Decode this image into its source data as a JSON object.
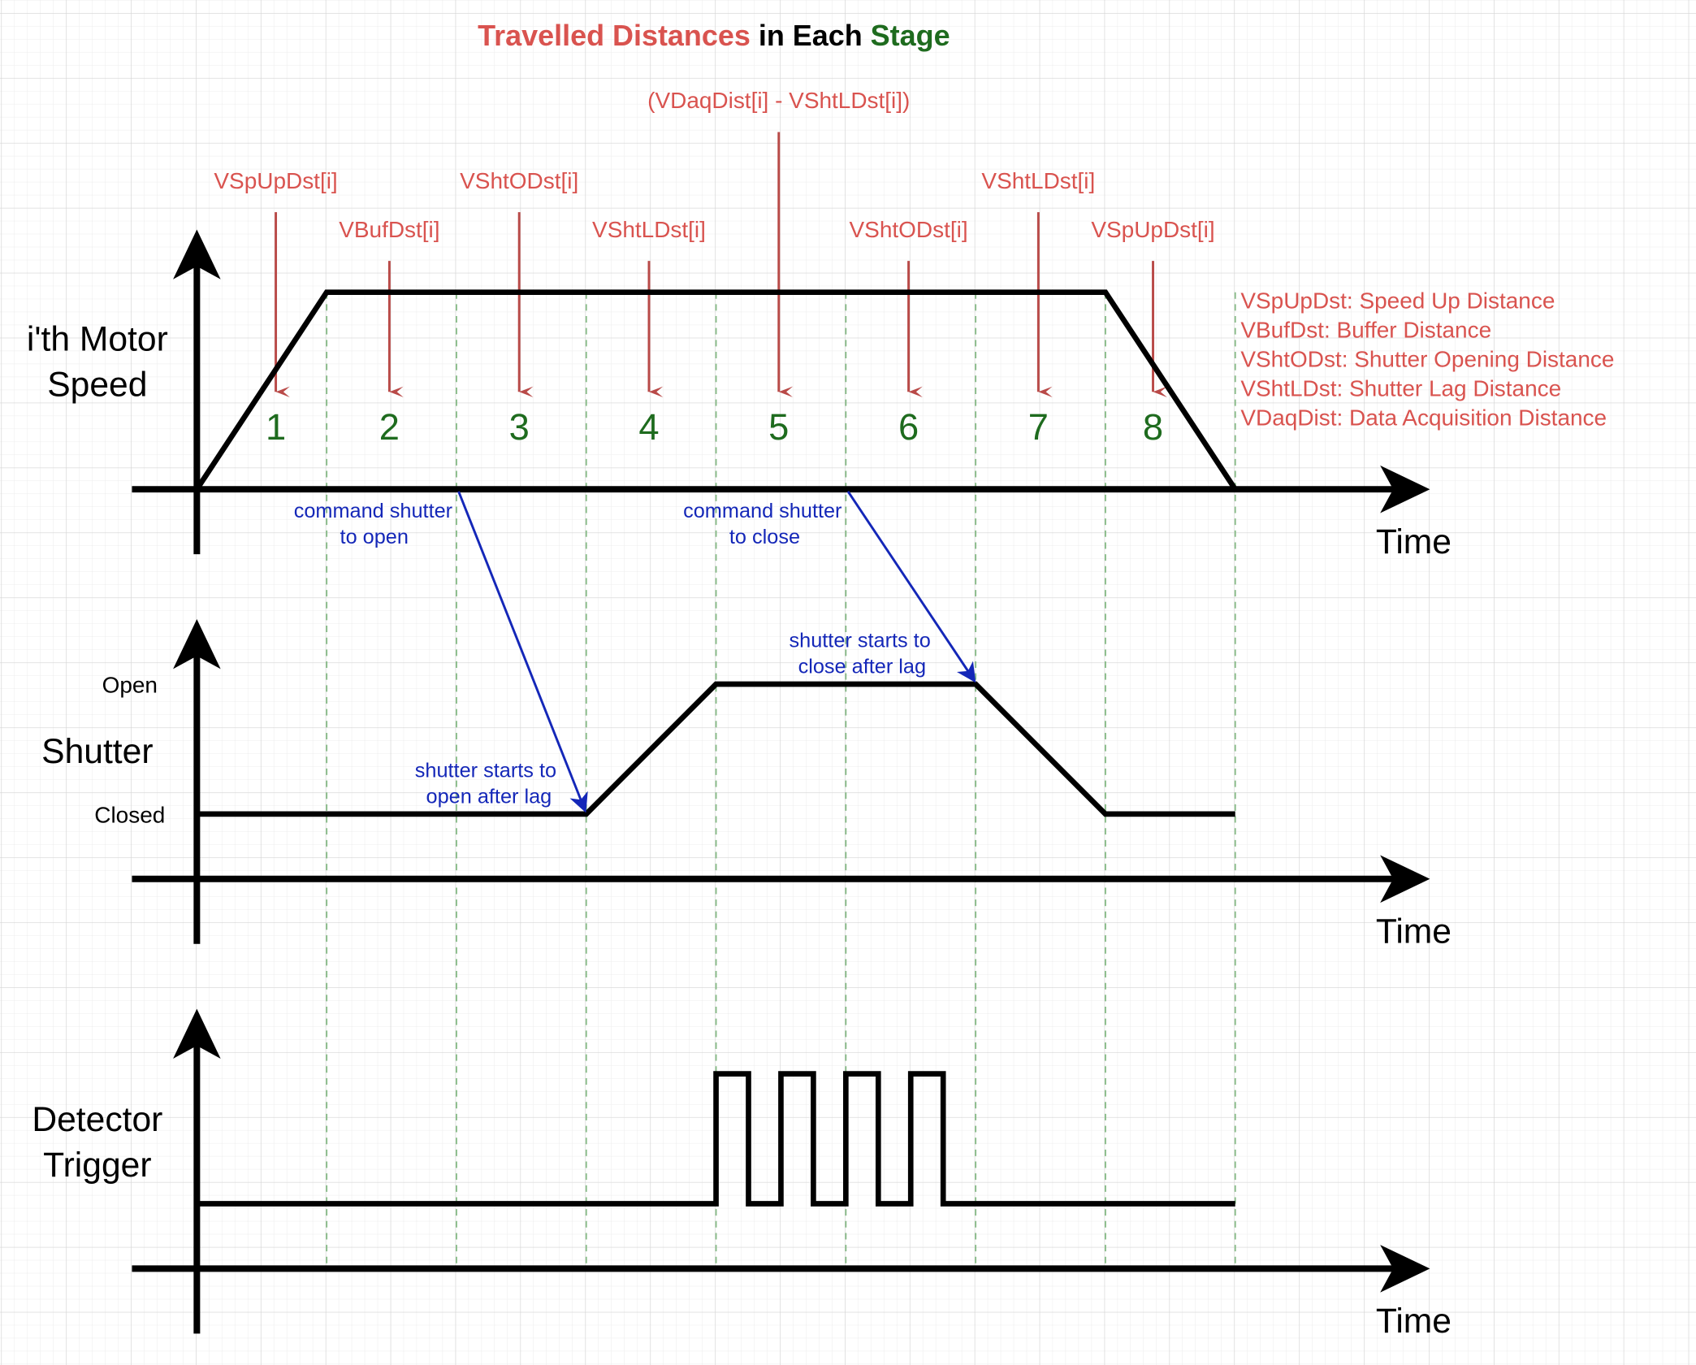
{
  "title": {
    "part1": "Travelled Distances",
    "part2": " in Each ",
    "part3": "Stage"
  },
  "colors": {
    "red": "#d9534f",
    "arrow_red": "#b94a48",
    "green": "#1e6b1e",
    "blue": "#1427b8",
    "black": "#000000",
    "grid_minor": "#e6e6e6",
    "grid_major": "#d0d0d0",
    "stage_divider": "#88bb88"
  },
  "panels": {
    "speed": {
      "ylabel_line1": "i'th Motor",
      "ylabel_line2": "Speed",
      "xlabel": "Time"
    },
    "shutter": {
      "ylabel": "Shutter",
      "open_label": "Open",
      "closed_label": "Closed",
      "xlabel": "Time"
    },
    "trigger": {
      "ylabel_line1": "Detector",
      "ylabel_line2": "Trigger",
      "xlabel": "Time"
    }
  },
  "stages": [
    {
      "number": "1",
      "distance_label": "VSpUpDst[i]"
    },
    {
      "number": "2",
      "distance_label": "VBufDst[i]"
    },
    {
      "number": "3",
      "distance_label": "VShtODst[i]"
    },
    {
      "number": "4",
      "distance_label": "VShtLDst[i]"
    },
    {
      "number": "5",
      "distance_label": "(VDaqDist[i] - VShtLDst[i])"
    },
    {
      "number": "6",
      "distance_label": "VShtODst[i]"
    },
    {
      "number": "7",
      "distance_label": "VShtLDst[i]"
    },
    {
      "number": "8",
      "distance_label": "VSpUpDst[i]"
    }
  ],
  "legend": [
    "VSpUpDst: Speed Up Distance",
    "VBufDst: Buffer Distance",
    "VShtODst: Shutter Opening Distance",
    "VShtLDst: Shutter Lag Distance",
    "VDaqDist: Data Acquisition Distance"
  ],
  "annotations": {
    "cmd_open_line1": "command shutter",
    "cmd_open_line2": "to open",
    "cmd_close_line1": "command shutter",
    "cmd_close_line2": "to close",
    "starts_open_line1": "shutter starts to",
    "starts_open_line2": "open after lag",
    "starts_close_line1": "shutter starts to",
    "starts_close_line2": "close after lag"
  }
}
